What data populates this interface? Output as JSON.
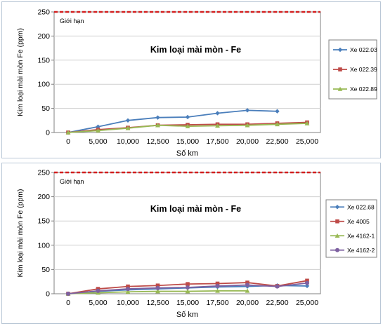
{
  "chart_data": [
    {
      "type": "line",
      "title": "Kim loại mài mòn - Fe",
      "xlabel": "Số km",
      "ylabel": "Kim loại mài mòn Fe  (ppm)",
      "limit_label": "Giới hạn",
      "limit_value": 250,
      "ylim": [
        0,
        250
      ],
      "yticks": [
        0,
        50,
        100,
        150,
        200,
        250
      ],
      "categories": [
        "0",
        "5,000",
        "10,000",
        "12,500",
        "15,000",
        "17,500",
        "20,000",
        "22,500",
        "25,000"
      ],
      "grid": true,
      "legend_position": "right",
      "series": [
        {
          "name": "Xe 022.03",
          "color": "#4a7ebb",
          "marker": "diamond",
          "values": [
            0,
            12,
            25,
            31,
            32,
            40,
            46,
            44,
            null
          ]
        },
        {
          "name": "Xe 022.39",
          "color": "#be4b48",
          "marker": "square",
          "values": [
            0,
            6,
            10,
            15,
            16,
            17,
            17,
            19,
            21
          ]
        },
        {
          "name": "Xe 022.89",
          "color": "#98b954",
          "marker": "triangle",
          "values": [
            0,
            4,
            9,
            15,
            13,
            14,
            15,
            17,
            19
          ]
        }
      ]
    },
    {
      "type": "line",
      "title": "Kim loại mài mòn - Fe",
      "xlabel": "Số km",
      "ylabel": "Kim loại mài mòn Fe  (ppm)",
      "limit_label": "Giới hạn",
      "limit_value": 250,
      "ylim": [
        0,
        250
      ],
      "yticks": [
        0,
        50,
        100,
        150,
        200,
        250
      ],
      "categories": [
        "0",
        "5,000",
        "10,000",
        "12,500",
        "15,000",
        "17,500",
        "20,000",
        "22,500",
        "25,000"
      ],
      "grid": true,
      "legend_position": "right",
      "series": [
        {
          "name": "Xe 022.68",
          "color": "#4a7ebb",
          "marker": "diamond",
          "values": [
            0,
            5,
            8,
            10,
            12,
            14,
            15,
            17,
            16
          ]
        },
        {
          "name": "Xe 4005",
          "color": "#be4b48",
          "marker": "square",
          "values": [
            0,
            10,
            15,
            17,
            20,
            21,
            23,
            16,
            27
          ]
        },
        {
          "name": "Xe 4162-1",
          "color": "#98b954",
          "marker": "triangle",
          "values": [
            0,
            2,
            4,
            5,
            5,
            6,
            6,
            null,
            null
          ]
        },
        {
          "name": "Xe 4162-2",
          "color": "#7d60a0",
          "marker": "circle",
          "values": [
            0,
            6,
            10,
            12,
            13,
            16,
            18,
            15,
            22
          ]
        }
      ]
    }
  ]
}
